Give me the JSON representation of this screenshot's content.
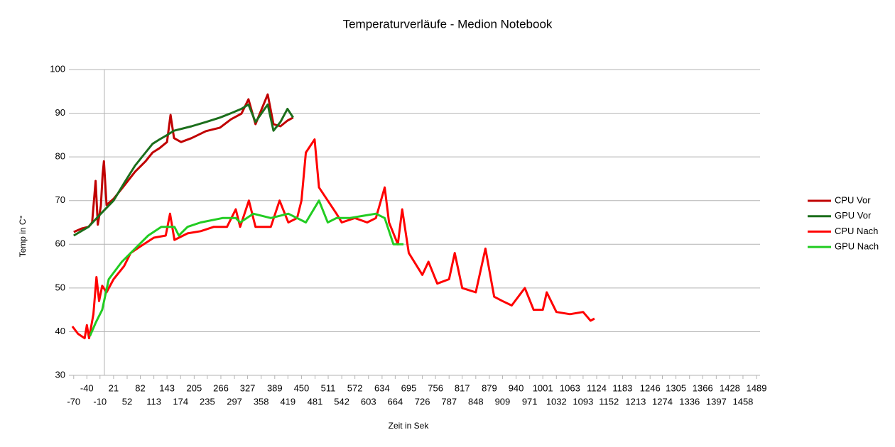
{
  "chart_data": {
    "type": "line",
    "title": "Temperaturverläufe  -  Medion Notebook",
    "xlabel": "Zeit in Sek",
    "ylabel": "Temp in C°",
    "xlim": [
      -81,
      1497
    ],
    "ylim": [
      30,
      100
    ],
    "yticks": [
      30,
      40,
      50,
      60,
      70,
      80,
      90,
      100
    ],
    "xticks": [
      -70,
      -40,
      -10,
      21,
      52,
      82,
      113,
      143,
      174,
      205,
      235,
      266,
      297,
      327,
      358,
      389,
      419,
      450,
      481,
      511,
      542,
      572,
      603,
      634,
      664,
      695,
      726,
      756,
      787,
      817,
      848,
      879,
      909,
      940,
      971,
      1001,
      1032,
      1063,
      1093,
      1124,
      1152,
      1183,
      1213,
      1246,
      1274,
      1305,
      1336,
      1366,
      1397,
      1428,
      1458,
      1489
    ],
    "grid": true,
    "legend": "right",
    "series": [
      {
        "name": "CPU Vor",
        "color": "#c00000",
        "x": [
          -70,
          -52,
          -36,
          -28,
          -20,
          -15,
          -8,
          -4,
          -1,
          5,
          21,
          45,
          70,
          94,
          110,
          126,
          143,
          151,
          159,
          175,
          199,
          232,
          264,
          289,
          313,
          329,
          345,
          373,
          386,
          402,
          418,
          431
        ],
        "values": [
          62.8,
          63.6,
          64,
          65,
          74.5,
          64.5,
          68.8,
          76,
          79,
          69,
          70.4,
          73.4,
          76.6,
          79,
          81,
          82,
          83.4,
          89.6,
          84.3,
          83.4,
          84.3,
          85.9,
          86.7,
          88.6,
          89.9,
          93.2,
          87.5,
          94.3,
          87.5,
          87,
          88.3,
          89
        ]
      },
      {
        "name": "GPU Vor",
        "color": "#1b6e1b",
        "x": [
          -70,
          -36,
          -8,
          21,
          45,
          70,
          94,
          110,
          126,
          143,
          159,
          199,
          232,
          264,
          289,
          313,
          329,
          345,
          373,
          386,
          402,
          418,
          431
        ],
        "values": [
          62,
          64,
          67,
          70,
          74,
          78,
          81,
          83,
          84,
          85,
          86,
          87,
          88,
          89,
          90,
          91,
          92,
          88,
          92,
          86,
          88,
          91,
          89
        ]
      },
      {
        "name": "CPU Nach",
        "color": "#ff0000",
        "x": [
          -73,
          -60,
          -45,
          -40,
          -35,
          -25,
          -18,
          -12,
          -5,
          5,
          21,
          45,
          60,
          82,
          113,
          140,
          150,
          160,
          190,
          220,
          250,
          280,
          300,
          310,
          330,
          345,
          380,
          400,
          420,
          440,
          450,
          460,
          480,
          490,
          510,
          530,
          542,
          572,
          600,
          620,
          640,
          650,
          670,
          680,
          695,
          726,
          740,
          760,
          787,
          800,
          817,
          848,
          870,
          890,
          909,
          930,
          960,
          980,
          1001,
          1010,
          1032,
          1063,
          1093,
          1110,
          1119
        ],
        "values": [
          41.2,
          39.5,
          38.5,
          41.5,
          38.5,
          44,
          52.5,
          47,
          50.5,
          49,
          52,
          55,
          58,
          59.5,
          61.5,
          62,
          67,
          61,
          62.5,
          63,
          64,
          64,
          68,
          64,
          70,
          64,
          64,
          70,
          65,
          66,
          70,
          81,
          84,
          73,
          70,
          67,
          65,
          66,
          65,
          66,
          73,
          65,
          60,
          68,
          58,
          53,
          56,
          51,
          52,
          58,
          50,
          49,
          59,
          48,
          47,
          46,
          50,
          45,
          45,
          49,
          44.5,
          44,
          44.5,
          42.5,
          43
        ]
      },
      {
        "name": "GPU Nach",
        "color": "#22cc22",
        "x": [
          -33,
          -20,
          -5,
          10,
          40,
          70,
          100,
          130,
          160,
          170,
          190,
          220,
          270,
          300,
          310,
          340,
          380,
          420,
          460,
          490,
          510,
          530,
          560,
          620,
          640,
          660,
          683
        ],
        "values": [
          39,
          42,
          45,
          52,
          56,
          59,
          62,
          64,
          64,
          62,
          64,
          65,
          66,
          66,
          65,
          67,
          66,
          67,
          65,
          70,
          65,
          66,
          66,
          67,
          66,
          60,
          60
        ]
      }
    ]
  }
}
